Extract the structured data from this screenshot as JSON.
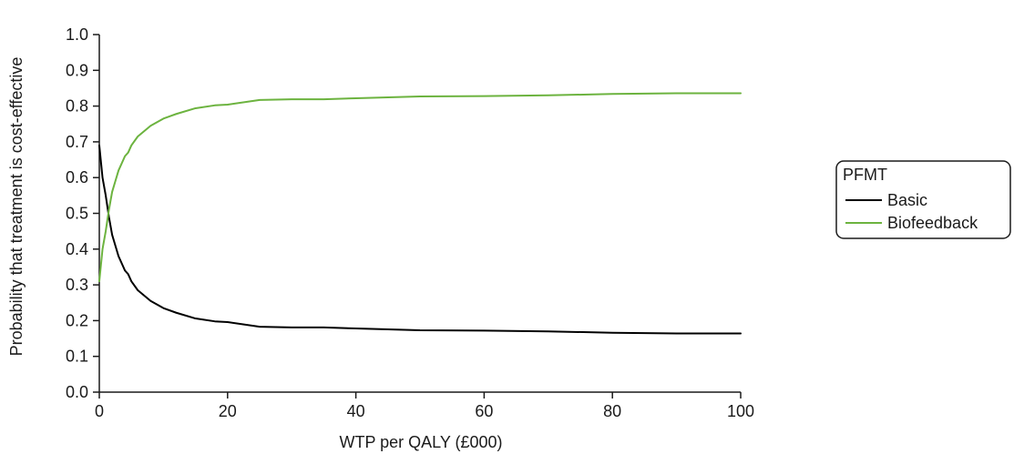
{
  "chart_data": {
    "type": "line",
    "title": "",
    "xlabel": "WTP per QALY (£000)",
    "ylabel": "Probability that treatment is cost-effective",
    "xlim": [
      0,
      100
    ],
    "ylim": [
      0,
      1.0
    ],
    "x_ticks": [
      "0",
      "20",
      "40",
      "60",
      "80",
      "100"
    ],
    "y_ticks": [
      "0.0",
      "0.1",
      "0.2",
      "0.3",
      "0.4",
      "0.5",
      "0.6",
      "0.7",
      "0.8",
      "0.9",
      "1.0"
    ],
    "grid": false,
    "legend": {
      "title": "PFMT",
      "position": "right"
    },
    "series": [
      {
        "name": "Basic",
        "color": "#000000",
        "x": [
          0,
          0.5,
          1,
          1.5,
          2,
          2.5,
          3,
          3.5,
          4,
          4.5,
          5,
          6,
          7,
          8,
          10,
          12,
          15,
          18,
          20,
          25,
          30,
          35,
          40,
          50,
          60,
          70,
          80,
          90,
          100
        ],
        "y": [
          0.69,
          0.6,
          0.55,
          0.49,
          0.44,
          0.41,
          0.38,
          0.36,
          0.34,
          0.33,
          0.31,
          0.285,
          0.27,
          0.255,
          0.235,
          0.222,
          0.206,
          0.198,
          0.196,
          0.183,
          0.181,
          0.181,
          0.178,
          0.173,
          0.172,
          0.17,
          0.166,
          0.164,
          0.164
        ]
      },
      {
        "name": "Biofeedback",
        "color": "#6cb33f",
        "x": [
          0,
          0.5,
          1,
          1.5,
          2,
          2.5,
          3,
          3.5,
          4,
          4.5,
          5,
          6,
          7,
          8,
          10,
          12,
          15,
          18,
          20,
          25,
          30,
          35,
          40,
          50,
          60,
          70,
          80,
          90,
          100
        ],
        "y": [
          0.31,
          0.4,
          0.45,
          0.51,
          0.56,
          0.59,
          0.62,
          0.64,
          0.66,
          0.67,
          0.69,
          0.715,
          0.73,
          0.745,
          0.765,
          0.778,
          0.794,
          0.802,
          0.804,
          0.817,
          0.819,
          0.819,
          0.822,
          0.827,
          0.828,
          0.83,
          0.834,
          0.836,
          0.836
        ]
      }
    ]
  }
}
